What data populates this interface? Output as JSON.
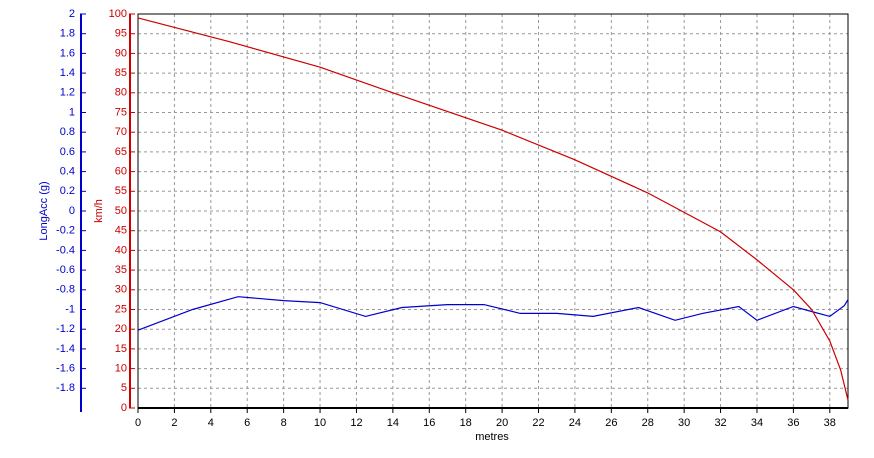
{
  "chart_data": {
    "type": "line",
    "xlabel": "metres",
    "ylabel": "LongAcc (g)",
    "y2label": "km/h",
    "xlim": [
      0,
      39
    ],
    "xticks": [
      0,
      2,
      4,
      6,
      8,
      10,
      12,
      14,
      16,
      18,
      20,
      22,
      24,
      26,
      28,
      30,
      32,
      34,
      36,
      38
    ],
    "ylim": [
      -2,
      2
    ],
    "yticks": [
      -1.8,
      -1.6,
      -1.4,
      -1.2,
      -1,
      -0.8,
      -0.6,
      -0.4,
      -0.2,
      0,
      0.2,
      0.4,
      0.6,
      0.8,
      1,
      1.2,
      1.4,
      1.6,
      1.8,
      2
    ],
    "y2lim": [
      0,
      100
    ],
    "y2ticks": [
      0,
      5,
      10,
      15,
      20,
      25,
      30,
      35,
      40,
      45,
      50,
      55,
      60,
      65,
      70,
      75,
      80,
      85,
      90,
      95,
      100
    ],
    "grid": true,
    "ycolor": "#0000cc",
    "y2color": "#cc0000",
    "series": [
      {
        "color": "#0000cc",
        "axis": "y",
        "x": [
          0,
          3,
          5.5,
          8,
          10,
          12.5,
          14.5,
          17,
          19,
          21,
          23,
          25,
          27.5,
          29.5,
          31,
          33,
          34,
          36,
          37,
          38,
          38.8,
          39
        ],
        "values": [
          -1.21,
          -1.0,
          -0.87,
          -0.91,
          -0.93,
          -1.07,
          -0.98,
          -0.95,
          -0.95,
          -1.04,
          -1.04,
          -1.07,
          -0.98,
          -1.11,
          -1.04,
          -0.97,
          -1.11,
          -0.97,
          -1.02,
          -1.07,
          -0.96,
          -0.9
        ]
      },
      {
        "color": "#cc0000",
        "axis": "y2",
        "x": [
          0,
          5,
          10,
          14,
          20,
          24,
          28,
          32,
          34,
          36,
          37,
          38,
          38.6,
          39
        ],
        "values": [
          99,
          93,
          86.5,
          80,
          70.5,
          63,
          54.6,
          44.7,
          37.6,
          30,
          25,
          17,
          9.6,
          2
        ]
      }
    ]
  }
}
